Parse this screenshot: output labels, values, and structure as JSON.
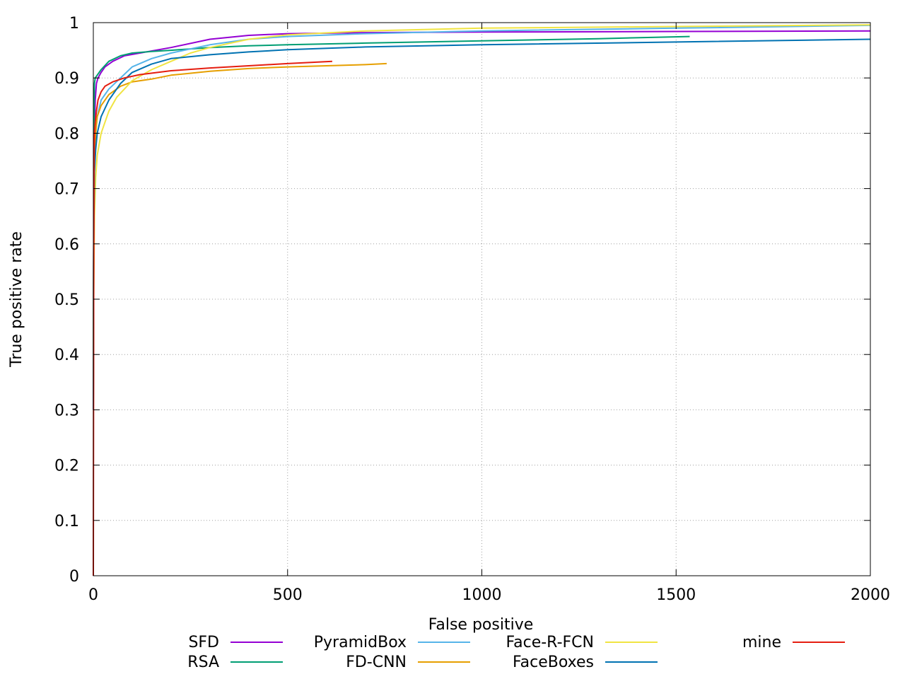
{
  "chart_data": {
    "type": "line",
    "title": "",
    "xlabel": "False positive",
    "ylabel": "True positive rate",
    "xlim": [
      0,
      2000
    ],
    "ylim": [
      0,
      1
    ],
    "x_ticks": [
      0,
      500,
      1000,
      1500,
      2000
    ],
    "x_tick_labels": [
      "0",
      "500",
      "1000",
      "1500",
      "2000"
    ],
    "y_ticks": [
      0,
      0.1,
      0.2,
      0.3,
      0.4,
      0.5,
      0.6,
      0.7,
      0.8,
      0.9,
      1
    ],
    "y_tick_labels": [
      "0",
      "0.1",
      "0.2",
      "0.3",
      "0.4",
      "0.5",
      "0.6",
      "0.7",
      "0.8",
      "0.9",
      "1"
    ],
    "grid": true,
    "legend_position": "bottom",
    "series": [
      {
        "name": "SFD",
        "color": "#9400d3",
        "x": [
          0,
          1,
          3,
          5,
          8,
          12,
          20,
          30,
          50,
          80,
          120,
          200,
          300,
          400,
          500,
          700,
          1000,
          1500,
          2000
        ],
        "y": [
          0.3,
          0.6,
          0.8,
          0.86,
          0.89,
          0.9,
          0.91,
          0.92,
          0.93,
          0.94,
          0.945,
          0.955,
          0.97,
          0.977,
          0.98,
          0.982,
          0.983,
          0.984,
          0.985
        ]
      },
      {
        "name": "RSA",
        "color": "#009e73",
        "x": [
          0,
          1,
          2,
          3,
          5,
          10,
          20,
          40,
          70,
          100,
          150,
          200,
          300,
          400,
          500,
          700,
          1000,
          1300,
          1535
        ],
        "y": [
          0.3,
          0.6,
          0.85,
          0.89,
          0.9,
          0.905,
          0.915,
          0.93,
          0.94,
          0.945,
          0.948,
          0.95,
          0.955,
          0.958,
          0.96,
          0.963,
          0.967,
          0.971,
          0.975
        ]
      },
      {
        "name": "PyramidBox",
        "color": "#56b4e9",
        "x": [
          0,
          1,
          3,
          6,
          10,
          20,
          40,
          70,
          100,
          150,
          200,
          300,
          400,
          500,
          700,
          1000,
          1500,
          2000
        ],
        "y": [
          0.3,
          0.6,
          0.75,
          0.8,
          0.83,
          0.86,
          0.88,
          0.9,
          0.92,
          0.935,
          0.945,
          0.96,
          0.97,
          0.975,
          0.98,
          0.985,
          0.99,
          0.995
        ]
      },
      {
        "name": "FD-CNN",
        "color": "#e69f00",
        "x": [
          0,
          1,
          3,
          6,
          10,
          20,
          40,
          70,
          100,
          150,
          200,
          300,
          400,
          500,
          600,
          700,
          755
        ],
        "y": [
          0.35,
          0.6,
          0.75,
          0.8,
          0.83,
          0.85,
          0.87,
          0.885,
          0.893,
          0.898,
          0.905,
          0.912,
          0.917,
          0.92,
          0.922,
          0.924,
          0.926
        ]
      },
      {
        "name": "Face-R-FCN",
        "color": "#f0e442",
        "x": [
          0,
          1,
          3,
          6,
          10,
          20,
          40,
          60,
          80,
          100,
          150,
          200,
          250,
          300,
          400,
          500,
          700,
          1000,
          1500,
          2000
        ],
        "y": [
          0.3,
          0.5,
          0.65,
          0.72,
          0.76,
          0.8,
          0.84,
          0.865,
          0.88,
          0.895,
          0.915,
          0.93,
          0.945,
          0.955,
          0.97,
          0.978,
          0.985,
          0.99,
          0.993,
          0.996
        ]
      },
      {
        "name": "FaceBoxes",
        "color": "#0072b2",
        "x": [
          0,
          1,
          3,
          6,
          10,
          20,
          40,
          70,
          100,
          150,
          200,
          300,
          400,
          500,
          700,
          1000,
          1500,
          2000
        ],
        "y": [
          0.3,
          0.6,
          0.73,
          0.77,
          0.8,
          0.83,
          0.86,
          0.89,
          0.91,
          0.925,
          0.935,
          0.942,
          0.947,
          0.951,
          0.956,
          0.96,
          0.965,
          0.97
        ]
      },
      {
        "name": "mine",
        "color": "#e51e10",
        "x": [
          0,
          1,
          2,
          3,
          5,
          8,
          12,
          20,
          30,
          50,
          80,
          120,
          200,
          300,
          400,
          500,
          615
        ],
        "y": [
          0.0,
          0.5,
          0.75,
          0.8,
          0.82,
          0.84,
          0.86,
          0.875,
          0.885,
          0.893,
          0.9,
          0.906,
          0.913,
          0.918,
          0.922,
          0.926,
          0.93
        ]
      }
    ]
  }
}
